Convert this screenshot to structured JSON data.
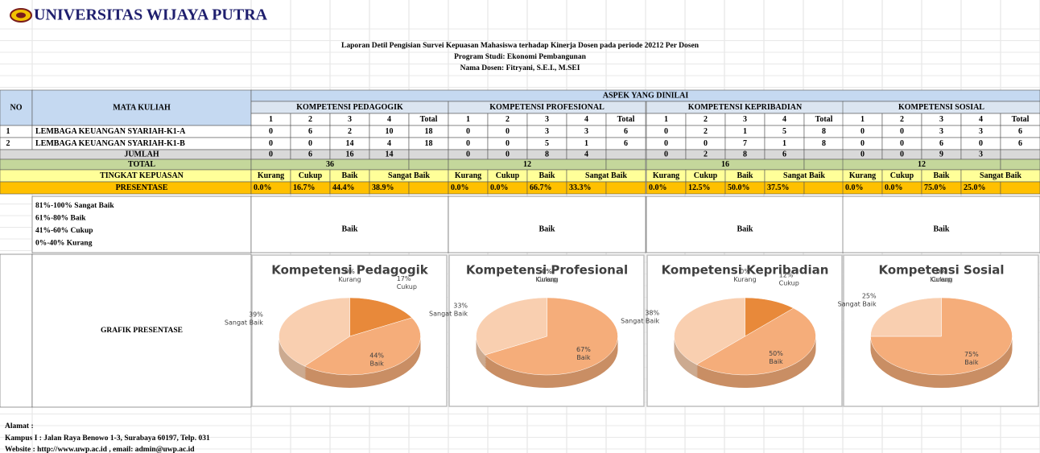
{
  "header": {
    "university": "UNIVERSITAS WIJAYA PUTRA",
    "report_title": "Laporan Detil Pengisian Survei Kepuasan Mahasiswa terhadap Kinerja Dosen pada periode 20212 Per Dosen",
    "program": "Program Studi: Ekonomi Pembangunan",
    "lecturer": "Nama Dosen: Fitryani, S.E.I., M.SEI"
  },
  "table": {
    "col_no": "NO",
    "col_course": "MATA KULIAH",
    "aspect_header": "ASPEK YANG DINILAI",
    "rows": [
      {
        "no": "1",
        "course": "LEMBAGA KEUANGAN SYARIAH-K1-A"
      },
      {
        "no": "2",
        "course": "LEMBAGA KEUANGAN SYARIAH-K1-B"
      }
    ],
    "jumlah_label": "JUMLAH",
    "total_label": "TOTAL",
    "level_label": "TINGKAT KEPUASAN",
    "percent_label": "PRESENTASE",
    "scale": [
      "81%-100% Sangat Baik",
      "61%-80% Baik",
      "41%-60% Cukup",
      "0%-40% Kurang"
    ],
    "chart_label": "GRAFIK PRESENTASE",
    "pie_colors": [
      "#f0a868",
      "#e8893a",
      "#f5ad7a",
      "#f9cfb0"
    ],
    "groups": [
      {
        "name": "KOMPETENSI PEDAGOGIK",
        "columns": [
          "1",
          "2",
          "3",
          "4",
          "Total"
        ],
        "rows": [
          [
            0,
            6,
            2,
            10,
            18
          ],
          [
            0,
            0,
            14,
            4,
            18
          ]
        ],
        "jumlah": [
          0,
          6,
          16,
          14
        ],
        "total": 36,
        "levels": [
          "Kurang",
          "Cukup",
          "Baik",
          "Sangat Baik"
        ],
        "percentages": [
          "0.0%",
          "16.7%",
          "44.4%",
          "38.9%"
        ],
        "result": "Baik",
        "pie": {
          "title": "Kompetensi Pedagogik",
          "categories": [
            "Kurang",
            "Cukup",
            "Baik",
            "Sangat Baik"
          ],
          "values": [
            0,
            17,
            44,
            39
          ],
          "value_labels": [
            "0%",
            "17%",
            "44%",
            "39%"
          ]
        }
      },
      {
        "name": "KOMPETENSI PROFESIONAL",
        "columns": [
          "1",
          "2",
          "3",
          "4",
          "Total"
        ],
        "rows": [
          [
            0,
            0,
            3,
            3,
            6
          ],
          [
            0,
            0,
            5,
            1,
            6
          ]
        ],
        "jumlah": [
          0,
          0,
          8,
          4
        ],
        "total": 12,
        "levels": [
          "Kurang",
          "Cukup",
          "Baik",
          "Sangat Baik"
        ],
        "percentages": [
          "0.0%",
          "0.0%",
          "66.7%",
          "33.3%"
        ],
        "result": "Baik",
        "pie": {
          "title": "Kompetensi Profesional",
          "categories": [
            "Kurang",
            "Cukup",
            "Baik",
            "Sangat Baik"
          ],
          "values": [
            0,
            0,
            67,
            33
          ],
          "value_labels": [
            "0%",
            "0%",
            "67%",
            "33%"
          ]
        }
      },
      {
        "name": "KOMPETENSI KEPRIBADIAN",
        "columns": [
          "1",
          "2",
          "3",
          "4",
          "Total"
        ],
        "rows": [
          [
            0,
            2,
            1,
            5,
            8
          ],
          [
            0,
            0,
            7,
            1,
            8
          ]
        ],
        "jumlah": [
          0,
          2,
          8,
          6
        ],
        "total": 16,
        "levels": [
          "Kurang",
          "Cukup",
          "Baik",
          "Sangat Baik"
        ],
        "percentages": [
          "0.0%",
          "12.5%",
          "50.0%",
          "37.5%"
        ],
        "result": "Baik",
        "pie": {
          "title": "Kompetensi Kepribadian",
          "categories": [
            "Kurang",
            "Cukup",
            "Baik",
            "Sangat Baik"
          ],
          "values": [
            0,
            12,
            50,
            38
          ],
          "value_labels": [
            "0%",
            "12%",
            "50%",
            "38%"
          ]
        }
      },
      {
        "name": "KOMPETENSI SOSIAL",
        "columns": [
          "1",
          "2",
          "3",
          "4",
          "Total"
        ],
        "rows": [
          [
            0,
            0,
            3,
            3,
            6
          ],
          [
            0,
            0,
            6,
            0,
            6
          ]
        ],
        "jumlah": [
          0,
          0,
          9,
          3
        ],
        "total": 12,
        "levels": [
          "Kurang",
          "Cukup",
          "Baik",
          "Sangat Baik"
        ],
        "percentages": [
          "0.0%",
          "0.0%",
          "75.0%",
          "25.0%"
        ],
        "result": "Baik",
        "pie": {
          "title": "Kompetensi Sosial",
          "categories": [
            "Kurang",
            "Cukup",
            "Baik",
            "Sangat Baik"
          ],
          "values": [
            0,
            0,
            75,
            25
          ],
          "value_labels": [
            "0%",
            "0%",
            "75%",
            "25%"
          ]
        }
      }
    ]
  },
  "footer": {
    "address_label": "Alamat :",
    "campus": "Kampus I : Jalan Raya Benowo 1-3, Surabaya 60197, Telp. 031",
    "website": "Website : http://www.uwp.ac.id , email: admin@uwp.ac.id"
  }
}
